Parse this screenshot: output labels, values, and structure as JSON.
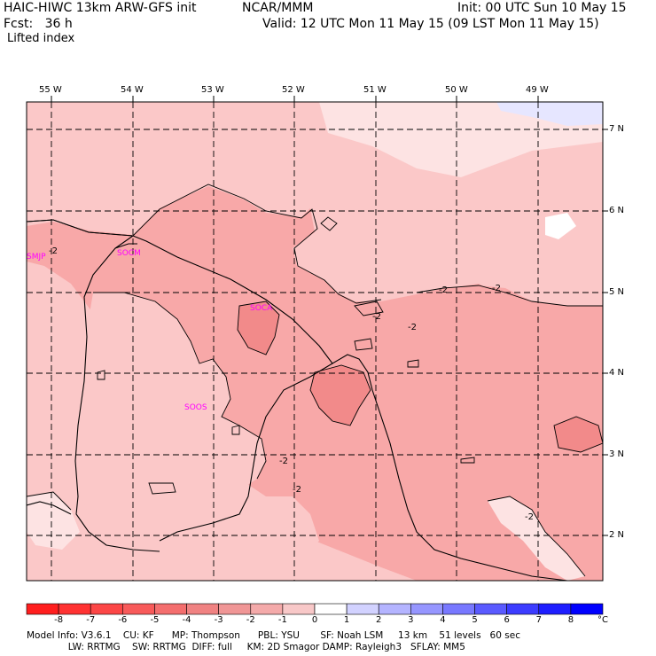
{
  "header": {
    "model_title": "HAIC-HIWC 13km ARW-GFS init",
    "center": "NCAR/MMM",
    "init": "Init: 00 UTC Sun 10 May 15",
    "fcst": "Fcst:   36 h",
    "valid": "Valid: 12 UTC Mon 11 May 15 (09 LST Mon 11 May 15)",
    "field": "Lifted index"
  },
  "map": {
    "lon_labels": [
      "55 W",
      "54 W",
      "53 W",
      "52 W",
      "51 W",
      "50 W",
      "49 W"
    ],
    "lat_labels": [
      "7 N",
      "6 N",
      "5 N",
      "4 N",
      "3 N",
      "2 N"
    ],
    "stations": [
      "SMJP",
      "SOCM",
      "SOCA",
      "SOOS"
    ],
    "contour_labels": [
      "-2",
      "-2",
      "-2",
      "-2",
      "-2",
      "-2",
      "-2",
      "-2",
      "-2"
    ],
    "colors": {
      "very_light": "#fde3e3",
      "light": "#fbc8c8",
      "medium": "#f8a8a8",
      "dark": "#f28a8a",
      "pale_blue": "#e6e6ff",
      "station": "#ff00ff"
    }
  },
  "colorbar": {
    "labels": [
      "-8",
      "-7",
      "-6",
      "-5",
      "-4",
      "-3",
      "-2",
      "-1",
      "0",
      "1",
      "2",
      "3",
      "4",
      "5",
      "6",
      "7",
      "8"
    ],
    "unit": "°C",
    "colors": [
      "#ff1e1e",
      "#ff3232",
      "#fc4646",
      "#f85a5a",
      "#f46e6e",
      "#f08282",
      "#f09696",
      "#f4aaaa",
      "#f8c8c8",
      "#ffffff",
      "#d2d2ff",
      "#b4b4ff",
      "#9696ff",
      "#7878ff",
      "#5a5aff",
      "#3c3cff",
      "#1e1eff",
      "#0000ff"
    ]
  },
  "footer": {
    "line1": "Model Info: V3.6.1    CU: KF      MP: Thompson      PBL: YSU       SF: Noah LSM     13 km    51 levels   60 sec",
    "line2": "              LW: RRTMG    SW: RRTMG  DIFF: full     KM: 2D Smagor DAMP: Rayleigh3   SFLAY: MM5"
  }
}
